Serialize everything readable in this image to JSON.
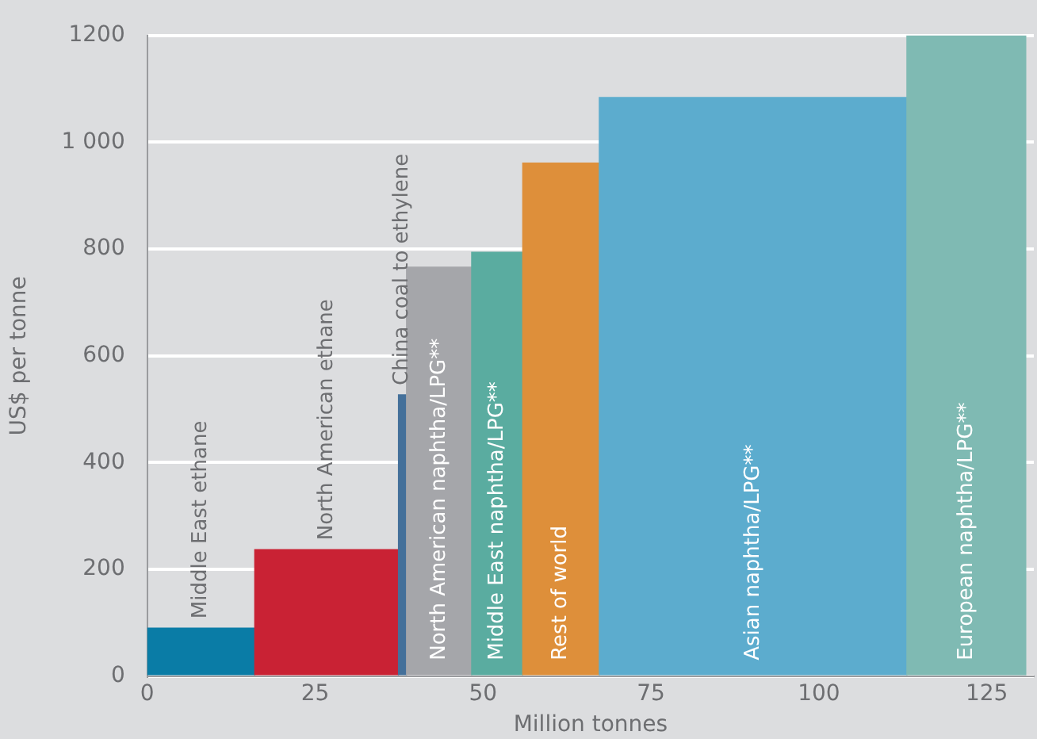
{
  "chart_data": {
    "type": "histogram",
    "xlabel": "Million tonnes",
    "ylabel": "US$ per tonne",
    "bins": [
      0,
      16,
      37.4,
      38.6,
      48.3,
      55.9,
      67.3,
      113.1,
      130.8
    ],
    "values": [
      90,
      237,
      527,
      766,
      794,
      961,
      1084,
      1200
    ],
    "categories": [
      "Middle East ethane",
      "North American ethane",
      "China coal to ethylene",
      "North American naphtha/LPG**",
      "Middle East naphtha/LPG**",
      "Rest of world",
      "Asian naphtha/LPG**",
      "European naphtha/LPG**"
    ],
    "colors": [
      "#0a7ca6",
      "#c92234",
      "#44709a",
      "#a5a6aa",
      "#5aaca0",
      "#de8f3a",
      "#5cacce",
      "#7fbab3"
    ],
    "xlim": [
      0,
      132
    ],
    "xticks": [
      0,
      25,
      50,
      75,
      100,
      125
    ],
    "ylim": [
      0,
      1200
    ],
    "yticks": [
      0,
      200,
      400,
      600,
      800,
      {
        "value": 1000,
        "label": "1 000"
      },
      1200
    ],
    "grid": "y",
    "legend": false
  }
}
